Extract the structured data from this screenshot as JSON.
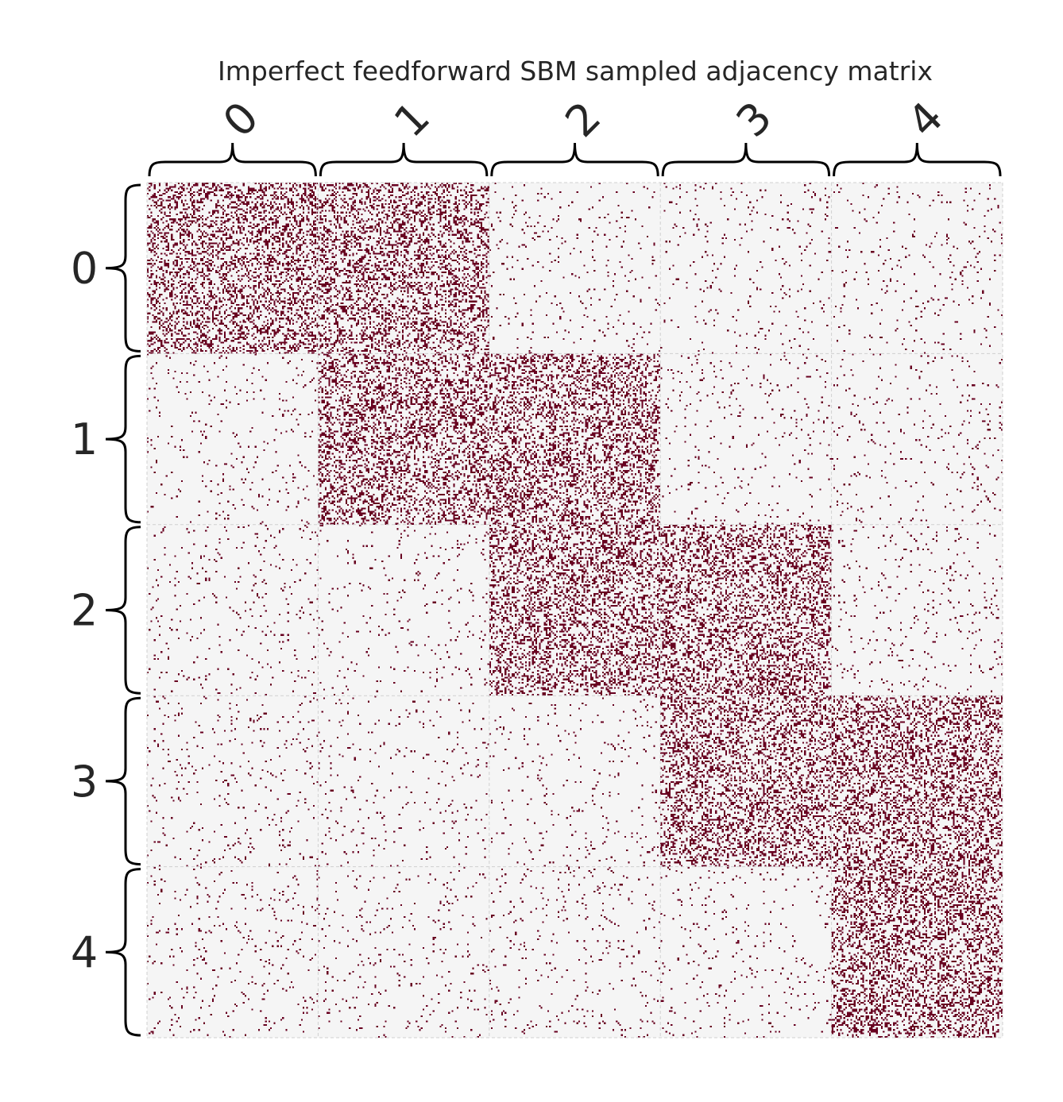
{
  "chart_data": {
    "type": "heatmap",
    "title": "Imperfect feedforward SBM sampled adjacency matrix",
    "row_labels": [
      "0",
      "1",
      "2",
      "3",
      "4"
    ],
    "col_labels": [
      "0",
      "1",
      "2",
      "3",
      "4"
    ],
    "block_size_nodes": 100,
    "block_edge_density": [
      [
        0.3,
        0.3,
        0.03,
        0.03,
        0.03
      ],
      [
        0.03,
        0.3,
        0.3,
        0.03,
        0.03
      ],
      [
        0.03,
        0.03,
        0.3,
        0.3,
        0.03
      ],
      [
        0.03,
        0.03,
        0.03,
        0.3,
        0.3
      ],
      [
        0.03,
        0.03,
        0.03,
        0.03,
        0.3
      ]
    ],
    "colors": {
      "edge": "#67001f",
      "background": "#f5f5f5",
      "grid": "#d0d0d0",
      "bracket": "#000000",
      "text": "#262626"
    },
    "grid": true
  }
}
